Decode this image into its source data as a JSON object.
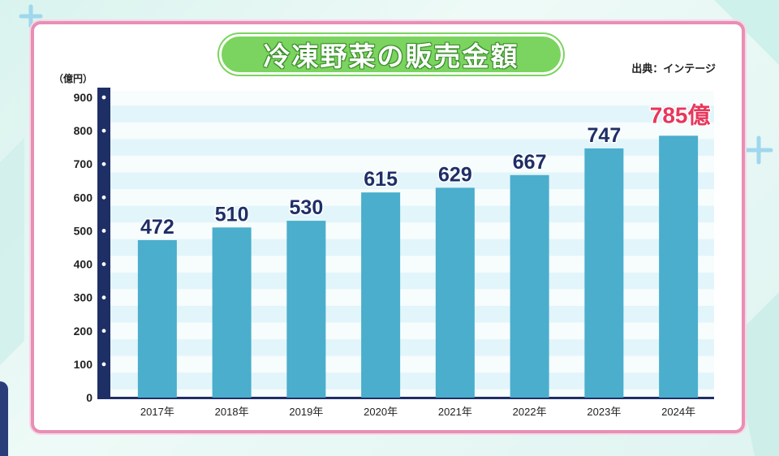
{
  "title": "冷凍野菜の販売金額",
  "source": "出典：インテージ",
  "unit": "（億円）",
  "colors": {
    "frame": "#e78fb5",
    "title_bg": "#7bd45f",
    "bar": "#4aaecc",
    "axis": "#1e2f66",
    "stripe": "#e2f5fa",
    "highlight": "#e8375c",
    "label": "#1e2f66"
  },
  "chart_data": {
    "type": "bar",
    "categories": [
      "2017年",
      "2018年",
      "2019年",
      "2020年",
      "2021年",
      "2022年",
      "2023年",
      "2024年"
    ],
    "values": [
      472,
      510,
      530,
      615,
      629,
      667,
      747,
      785
    ],
    "data_labels": [
      "472",
      "510",
      "530",
      "615",
      "629",
      "667",
      "747",
      "785億"
    ],
    "highlight_index": 7,
    "yticks": [
      0,
      100,
      200,
      300,
      400,
      500,
      600,
      700,
      800,
      900
    ],
    "ylim": [
      0,
      900
    ],
    "grid": "horizontal stripes",
    "legend": "none"
  }
}
